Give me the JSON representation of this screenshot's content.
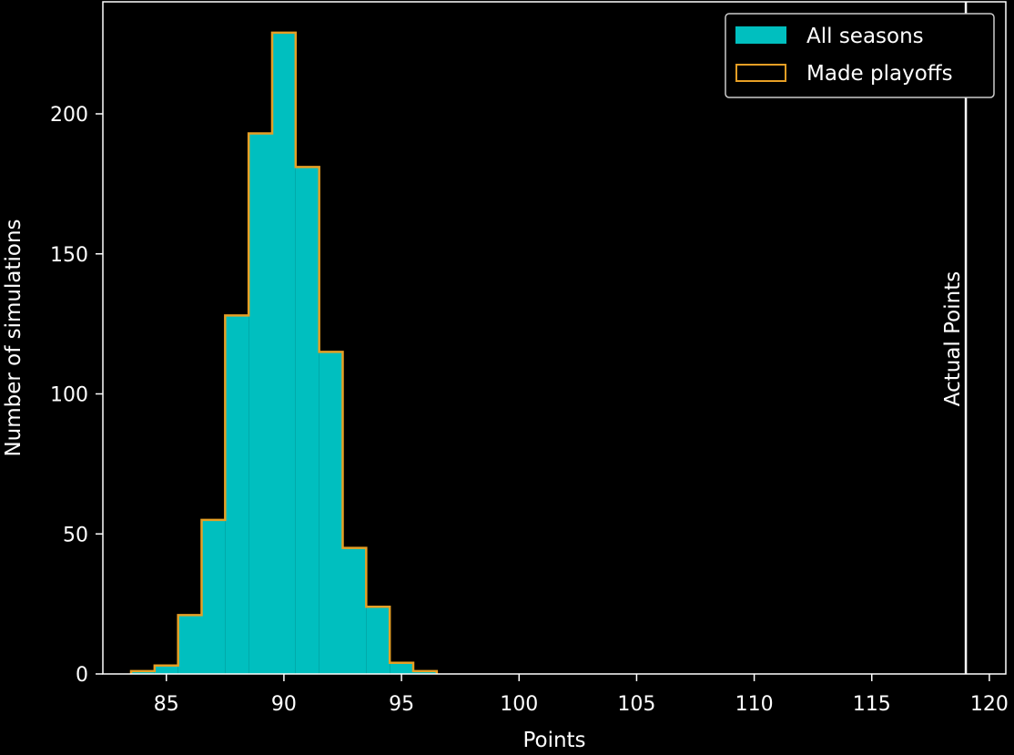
{
  "chart_data": {
    "type": "bar",
    "title": "",
    "xlabel": "Points",
    "ylabel": "Number of simulations",
    "xlim": [
      82.3,
      120.7
    ],
    "ylim": [
      0,
      240
    ],
    "xticks": [
      85,
      90,
      95,
      100,
      105,
      110,
      115,
      120
    ],
    "yticks": [
      0,
      50,
      100,
      150,
      200
    ],
    "bin_width": 1,
    "bins": [
      {
        "start": 83.5,
        "end": 84.5,
        "all": 1,
        "playoffs": 1
      },
      {
        "start": 84.5,
        "end": 85.5,
        "all": 3,
        "playoffs": 3
      },
      {
        "start": 85.5,
        "end": 86.5,
        "all": 21,
        "playoffs": 21
      },
      {
        "start": 86.5,
        "end": 87.5,
        "all": 55,
        "playoffs": 55
      },
      {
        "start": 87.5,
        "end": 88.5,
        "all": 128,
        "playoffs": 128
      },
      {
        "start": 88.5,
        "end": 89.5,
        "all": 193,
        "playoffs": 193
      },
      {
        "start": 89.5,
        "end": 90.5,
        "all": 229,
        "playoffs": 229
      },
      {
        "start": 90.5,
        "end": 91.5,
        "all": 181,
        "playoffs": 181
      },
      {
        "start": 91.5,
        "end": 92.5,
        "all": 115,
        "playoffs": 115
      },
      {
        "start": 92.5,
        "end": 93.5,
        "all": 45,
        "playoffs": 45
      },
      {
        "start": 93.5,
        "end": 94.5,
        "all": 24,
        "playoffs": 24
      },
      {
        "start": 94.5,
        "end": 95.5,
        "all": 4,
        "playoffs": 4
      },
      {
        "start": 95.5,
        "end": 96.5,
        "all": 1,
        "playoffs": 1
      }
    ],
    "series": [
      {
        "name": "All seasons",
        "style": "filled",
        "color": "#00bfbf"
      },
      {
        "name": "Made playoffs",
        "style": "step-outline",
        "color": "#e69f25"
      }
    ],
    "reference_line": {
      "x": 119,
      "label": "Actual Points",
      "color": "#ffffff"
    },
    "legend": {
      "placement": "top-right"
    },
    "grid": false,
    "background": "#000000",
    "axis_color": "#ffffff"
  }
}
